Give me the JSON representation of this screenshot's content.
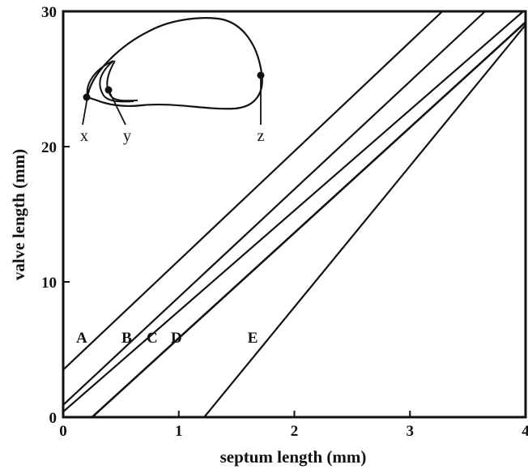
{
  "chart_data": {
    "type": "line",
    "title": "",
    "xlabel": "septum length (mm)",
    "ylabel": "valve length (mm)",
    "xlim": [
      0,
      4
    ],
    "ylim": [
      0,
      30
    ],
    "x_ticks": [
      0,
      1,
      2,
      3,
      4
    ],
    "y_ticks": [
      0,
      10,
      20,
      30
    ],
    "grid": false,
    "series": [
      {
        "name": "A",
        "label_at": [
          0.16,
          5.5
        ],
        "points": [
          [
            0,
            3.5
          ],
          [
            3.28,
            30
          ]
        ]
      },
      {
        "name": "B",
        "label_at": [
          0.55,
          5.5
        ],
        "points": [
          [
            0,
            0.9
          ],
          [
            3.65,
            30
          ]
        ]
      },
      {
        "name": "C",
        "label_at": [
          0.77,
          5.5
        ],
        "points": [
          [
            0,
            0.4
          ],
          [
            3.98,
            30
          ]
        ]
      },
      {
        "name": "D",
        "label_at": [
          0.98,
          5.5
        ],
        "points": [
          [
            0.25,
            0
          ],
          [
            4.0,
            29.2
          ]
        ]
      },
      {
        "name": "E",
        "label_at": [
          1.64,
          5.5
        ],
        "points": [
          [
            1.22,
            0
          ],
          [
            4.0,
            29.0
          ]
        ]
      }
    ],
    "inset": {
      "point_labels": [
        "x",
        "y",
        "z"
      ]
    }
  }
}
